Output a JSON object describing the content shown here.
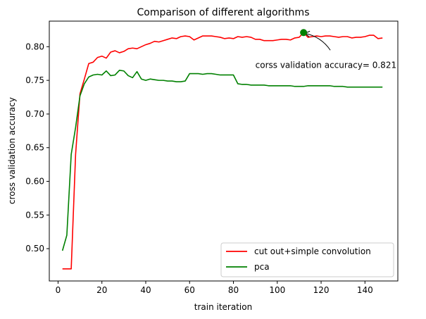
{
  "chart_data": {
    "type": "line",
    "title": "Comparison of different algorithms",
    "xlabel": "train iteration",
    "ylabel": "cross validation accuracy",
    "xlim": [
      -4,
      155
    ],
    "ylim": [
      0.452,
      0.838
    ],
    "xticks": [
      0,
      20,
      40,
      60,
      80,
      100,
      120,
      140
    ],
    "yticks": [
      0.5,
      0.55,
      0.6,
      0.65,
      0.7,
      0.75,
      0.8
    ],
    "ytick_labels": [
      "0.50",
      "0.55",
      "0.60",
      "0.65",
      "0.70",
      "0.75",
      "0.80"
    ],
    "grid": false,
    "legend_position": "lower-right",
    "series": [
      {
        "name": "cut out+simple convolution",
        "color": "#ff0000",
        "x": [
          2,
          4,
          6,
          8,
          10,
          12,
          14,
          16,
          18,
          20,
          22,
          24,
          26,
          28,
          30,
          32,
          34,
          36,
          38,
          40,
          42,
          44,
          46,
          48,
          50,
          52,
          54,
          56,
          58,
          60,
          62,
          64,
          66,
          68,
          70,
          72,
          74,
          76,
          78,
          80,
          82,
          84,
          86,
          88,
          90,
          92,
          94,
          96,
          98,
          100,
          102,
          104,
          106,
          108,
          110,
          112,
          114,
          116,
          118,
          120,
          122,
          124,
          126,
          128,
          130,
          132,
          134,
          136,
          138,
          140,
          142,
          144,
          146,
          148
        ],
        "y": [
          0.47,
          0.47,
          0.47,
          0.64,
          0.73,
          0.752,
          0.775,
          0.777,
          0.784,
          0.786,
          0.783,
          0.792,
          0.794,
          0.791,
          0.793,
          0.797,
          0.798,
          0.797,
          0.8,
          0.803,
          0.805,
          0.808,
          0.807,
          0.809,
          0.811,
          0.813,
          0.812,
          0.815,
          0.816,
          0.815,
          0.81,
          0.813,
          0.816,
          0.816,
          0.816,
          0.815,
          0.814,
          0.812,
          0.813,
          0.812,
          0.815,
          0.814,
          0.815,
          0.814,
          0.811,
          0.811,
          0.809,
          0.809,
          0.809,
          0.81,
          0.811,
          0.811,
          0.81,
          0.813,
          0.814,
          0.821,
          0.814,
          0.815,
          0.816,
          0.815,
          0.816,
          0.816,
          0.815,
          0.814,
          0.815,
          0.815,
          0.813,
          0.814,
          0.814,
          0.815,
          0.817,
          0.817,
          0.812,
          0.813
        ]
      },
      {
        "name": "pca",
        "color": "#008000",
        "x": [
          2,
          4,
          6,
          8,
          10,
          12,
          14,
          16,
          18,
          20,
          22,
          24,
          26,
          28,
          30,
          32,
          34,
          36,
          38,
          40,
          42,
          44,
          46,
          48,
          50,
          52,
          54,
          56,
          58,
          60,
          62,
          64,
          66,
          68,
          70,
          72,
          74,
          76,
          78,
          80,
          82,
          84,
          86,
          88,
          90,
          92,
          94,
          96,
          98,
          100,
          102,
          104,
          106,
          108,
          110,
          112,
          114,
          116,
          118,
          120,
          122,
          124,
          126,
          128,
          130,
          132,
          134,
          136,
          138,
          140,
          142,
          144,
          146,
          148
        ],
        "y": [
          0.497,
          0.52,
          0.64,
          0.68,
          0.727,
          0.745,
          0.755,
          0.758,
          0.759,
          0.758,
          0.764,
          0.757,
          0.758,
          0.765,
          0.764,
          0.757,
          0.754,
          0.763,
          0.752,
          0.75,
          0.752,
          0.751,
          0.75,
          0.75,
          0.749,
          0.749,
          0.748,
          0.748,
          0.749,
          0.76,
          0.76,
          0.76,
          0.759,
          0.76,
          0.76,
          0.759,
          0.758,
          0.758,
          0.758,
          0.758,
          0.745,
          0.744,
          0.744,
          0.743,
          0.743,
          0.743,
          0.743,
          0.742,
          0.742,
          0.742,
          0.742,
          0.742,
          0.742,
          0.741,
          0.741,
          0.741,
          0.742,
          0.742,
          0.742,
          0.742,
          0.742,
          0.742,
          0.741,
          0.741,
          0.741,
          0.74,
          0.74,
          0.74,
          0.74,
          0.74,
          0.74,
          0.74,
          0.74,
          0.74
        ]
      }
    ],
    "annotation": {
      "text": "corss validation accuracy= 0.821",
      "point": {
        "x": 112,
        "y": 0.821
      },
      "text_anchor_point": {
        "x": 90,
        "y": 0.779
      },
      "marker_color": "#008000"
    }
  }
}
